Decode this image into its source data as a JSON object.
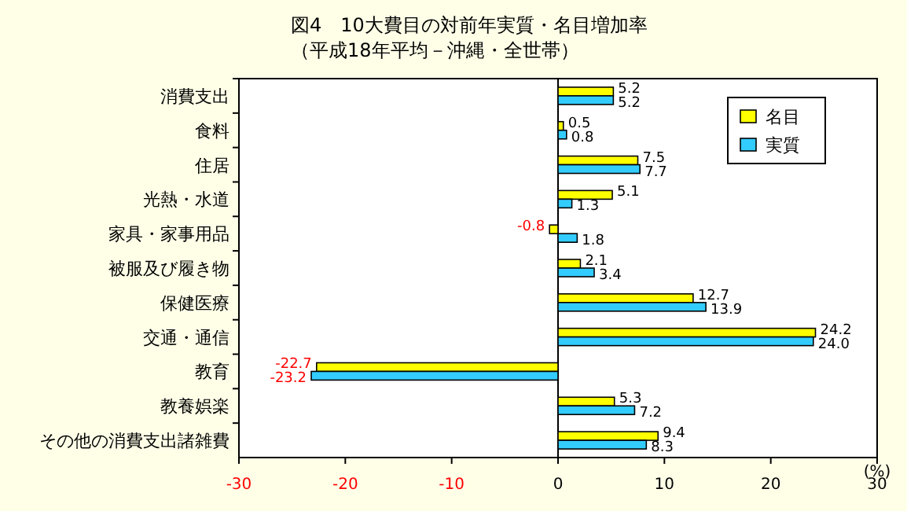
{
  "chart_data": {
    "type": "bar",
    "orientation": "horizontal",
    "title": "図4　10大費目の対前年実質・名目増加率",
    "subtitle": "（平成18年平均－沖縄・全世帯）",
    "xlabel": "(%)",
    "categories": [
      "消費支出",
      "食料",
      "住居",
      "光熱・水道",
      "家具・家事用品",
      "被服及び履き物",
      "保健医療",
      "交通・通信",
      "教育",
      "教養娯楽",
      "その他の消費支出諸雑費"
    ],
    "series": [
      {
        "name": "名目",
        "color": "#ffff00",
        "values": [
          5.2,
          0.5,
          7.5,
          5.1,
          -0.8,
          2.1,
          12.7,
          24.2,
          -22.7,
          5.3,
          9.4
        ],
        "value_labels": [
          "5.2",
          "0.5",
          "7.5",
          "5.1",
          "-0.8",
          "2.1",
          "12.7",
          "24.2",
          "-22.7",
          "5.3",
          "9.4"
        ]
      },
      {
        "name": "実質",
        "color": "#33ccff",
        "values": [
          5.2,
          0.8,
          7.7,
          1.3,
          1.8,
          3.4,
          13.9,
          24.0,
          -23.2,
          7.2,
          8.3
        ],
        "value_labels": [
          "5.2",
          "0.8",
          "7.7",
          "1.3",
          "1.8",
          "3.4",
          "13.9",
          "24.0",
          "-23.2",
          "7.2",
          "8.3"
        ]
      }
    ],
    "xlim": [
      -30,
      30
    ],
    "xticks": [
      -30,
      -20,
      -10,
      0,
      10,
      20,
      30
    ],
    "legend": "top right"
  }
}
